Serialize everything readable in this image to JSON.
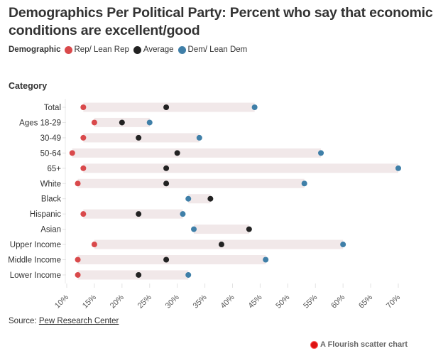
{
  "title": "Demographics Per Political Party: Percent who say that economic conditions are excellent/good",
  "legend": {
    "title": "Demographic",
    "items": [
      {
        "label": "Rep/ Lean Rep",
        "color": "#d9494b"
      },
      {
        "label": "Average",
        "color": "#222222"
      },
      {
        "label": "Dem/ Lean Dem",
        "color": "#3f7fa8"
      }
    ]
  },
  "category_label": "Category",
  "source": {
    "prefix": "Source:",
    "link_text": "Pew Research Center"
  },
  "credit": "A Flourish scatter chart",
  "chart_data": {
    "type": "scatter",
    "title": "Demographics Per Political Party: Percent who say that economic conditions are excellent/good",
    "xlabel": "",
    "ylabel": "Category",
    "xlim": [
      10,
      70
    ],
    "x_ticks": [
      "10%",
      "15%",
      "20%",
      "25%",
      "30%",
      "35%",
      "40%",
      "45%",
      "50%",
      "55%",
      "60%",
      "65%",
      "70%"
    ],
    "x_tick_values": [
      10,
      15,
      20,
      25,
      30,
      35,
      40,
      45,
      50,
      55,
      60,
      65,
      70
    ],
    "categories": [
      "Total",
      "Ages 18-29",
      "30-49",
      "50-64",
      "65+",
      "White",
      "Black",
      "Hispanic",
      "Asian",
      "Upper Income",
      "Middle Income",
      "Lower Income"
    ],
    "series": [
      {
        "name": "Rep/ Lean Rep",
        "color": "#d9494b",
        "values": [
          13,
          15,
          13,
          11,
          13,
          12,
          null,
          13,
          null,
          15,
          12,
          12
        ]
      },
      {
        "name": "Average",
        "color": "#222222",
        "values": [
          28,
          20,
          23,
          30,
          28,
          28,
          36,
          23,
          43,
          38,
          28,
          23
        ]
      },
      {
        "name": "Dem/ Lean Dem",
        "color": "#3f7fa8",
        "values": [
          44,
          25,
          34,
          56,
          70,
          53,
          32,
          31,
          33,
          60,
          46,
          32
        ]
      }
    ],
    "range_bar_color": "#f1e8e9",
    "grid": false,
    "legend_position": "top-left"
  }
}
